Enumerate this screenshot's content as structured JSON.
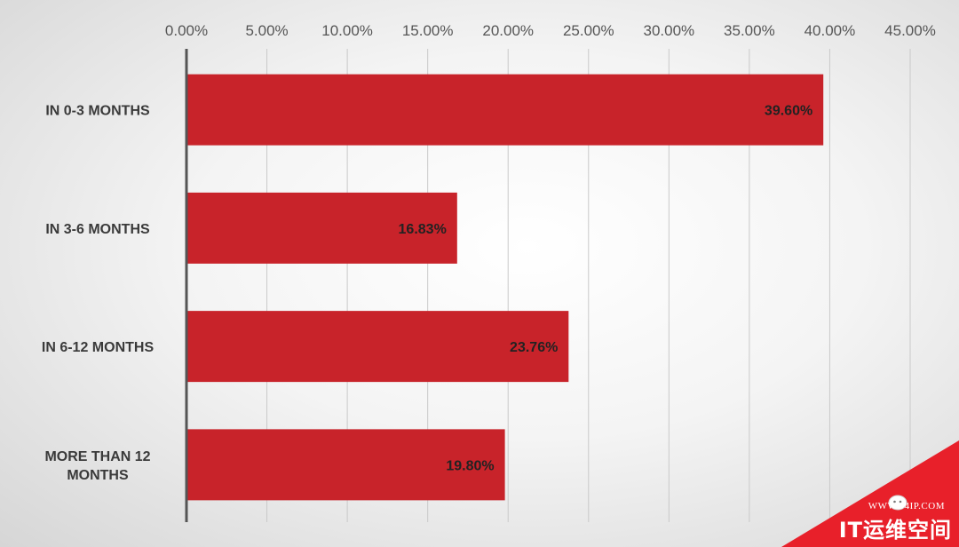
{
  "chart_data": {
    "type": "bar",
    "orientation": "horizontal",
    "categories": [
      "IN 0-3 MONTHS",
      "IN 3-6 MONTHS",
      "IN 6-12 MONTHS",
      [
        "MORE THAN 12",
        "MONTHS"
      ]
    ],
    "values": [
      39.6,
      16.83,
      23.76,
      19.8
    ],
    "data_labels": [
      "39.60%",
      "16.83%",
      "23.76%",
      "19.80%"
    ],
    "x_ticks": [
      "0.00%",
      "5.00%",
      "10.00%",
      "15.00%",
      "20.00%",
      "25.00%",
      "30.00%",
      "35.00%",
      "40.00%",
      "45.00%"
    ],
    "xlim": [
      0,
      45
    ],
    "x_axis_position": "top",
    "grid": true,
    "bar_color": "#c8232a",
    "title": "",
    "xlabel": "",
    "ylabel": ""
  },
  "watermark": {
    "url": "WWW.94IP.COM",
    "name": "IT运维空间",
    "color": "#e8202a"
  }
}
